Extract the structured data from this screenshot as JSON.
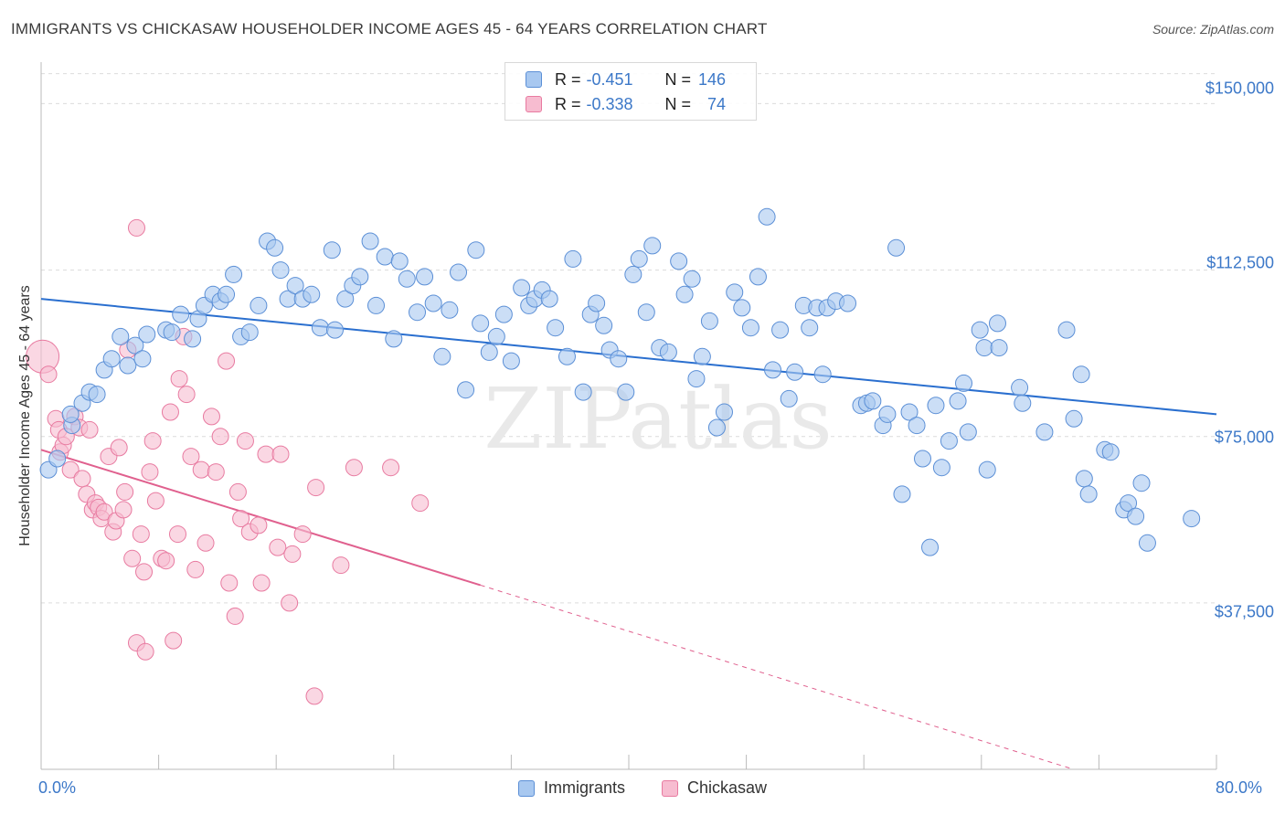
{
  "title": "IMMIGRANTS VS CHICKASAW HOUSEHOLDER INCOME AGES 45 - 64 YEARS CORRELATION CHART",
  "source": "Source: ZipAtlas.com",
  "watermark": "ZIPatlas",
  "colors": {
    "immigrants_fill": "#a8c8f0",
    "immigrants_stroke": "#5b8fd6",
    "immigrants_line": "#2a6fcf",
    "chickasaw_fill": "#f7bcd0",
    "chickasaw_stroke": "#e87aa0",
    "chickasaw_line": "#e0608e",
    "grid": "#dcdcdc",
    "tick_label": "#3c78c8"
  },
  "stats": {
    "immigrants": {
      "r_label": "R =",
      "r": "-0.451",
      "n_label": "N =",
      "n": "146"
    },
    "chickasaw": {
      "r_label": "R =",
      "r": "-0.338",
      "n_label": "N =",
      "n": "74"
    }
  },
  "legend": {
    "immigrants": "Immigrants",
    "chickasaw": "Chickasaw"
  },
  "chart_data": {
    "type": "scatter",
    "title": "IMMIGRANTS VS CHICKASAW HOUSEHOLDER INCOME AGES 45 - 64 YEARS CORRELATION CHART",
    "ylabel": "Householder Income Ages 45 - 64 years",
    "xlabel": "",
    "xlim": [
      0,
      80
    ],
    "ylim": [
      0,
      157500
    ],
    "x_tick_labels": [
      "0.0%",
      "80.0%"
    ],
    "y_ticks": [
      37500,
      75000,
      112500,
      150000
    ],
    "y_tick_labels": [
      "$37,500",
      "$75,000",
      "$112,500",
      "$150,000"
    ],
    "grid": true,
    "legend_position": "bottom-center",
    "series": [
      {
        "name": "Immigrants",
        "trend": {
          "x": [
            0,
            80
          ],
          "y": [
            106000,
            80000
          ]
        },
        "points": [
          [
            0.5,
            67500
          ],
          [
            1.1,
            70000
          ],
          [
            2.1,
            77500
          ],
          [
            2.0,
            80000
          ],
          [
            2.8,
            82500
          ],
          [
            3.3,
            85000
          ],
          [
            3.8,
            84500
          ],
          [
            4.3,
            90000
          ],
          [
            4.8,
            92500
          ],
          [
            5.4,
            97500
          ],
          [
            5.9,
            91000
          ],
          [
            6.4,
            95500
          ],
          [
            6.9,
            92500
          ],
          [
            7.2,
            98000
          ],
          [
            8.5,
            99000
          ],
          [
            8.9,
            98500
          ],
          [
            9.5,
            102500
          ],
          [
            10.3,
            97000
          ],
          [
            10.7,
            101500
          ],
          [
            11.1,
            104500
          ],
          [
            11.7,
            107000
          ],
          [
            12.2,
            105500
          ],
          [
            12.6,
            107000
          ],
          [
            13.1,
            111500
          ],
          [
            13.6,
            97500
          ],
          [
            14.2,
            98500
          ],
          [
            14.8,
            104500
          ],
          [
            15.4,
            119000
          ],
          [
            15.9,
            117500
          ],
          [
            16.3,
            112500
          ],
          [
            16.8,
            106000
          ],
          [
            17.3,
            109000
          ],
          [
            17.8,
            106000
          ],
          [
            18.4,
            107000
          ],
          [
            19.0,
            99500
          ],
          [
            19.8,
            117000
          ],
          [
            20.0,
            99000
          ],
          [
            20.7,
            106000
          ],
          [
            21.2,
            109000
          ],
          [
            21.7,
            111000
          ],
          [
            22.4,
            119000
          ],
          [
            22.8,
            104500
          ],
          [
            23.4,
            115500
          ],
          [
            24.0,
            97000
          ],
          [
            24.4,
            114500
          ],
          [
            24.9,
            110500
          ],
          [
            25.6,
            103000
          ],
          [
            26.1,
            111000
          ],
          [
            26.7,
            105000
          ],
          [
            27.3,
            93000
          ],
          [
            27.8,
            103500
          ],
          [
            28.4,
            112000
          ],
          [
            28.9,
            85500
          ],
          [
            29.6,
            117000
          ],
          [
            29.9,
            100500
          ],
          [
            30.5,
            94000
          ],
          [
            31.0,
            97500
          ],
          [
            31.5,
            102500
          ],
          [
            32.0,
            92000
          ],
          [
            32.7,
            108500
          ],
          [
            33.2,
            104500
          ],
          [
            33.6,
            106000
          ],
          [
            34.1,
            108000
          ],
          [
            34.6,
            106000
          ],
          [
            35.0,
            99500
          ],
          [
            35.8,
            93000
          ],
          [
            36.2,
            115000
          ],
          [
            36.9,
            85000
          ],
          [
            37.4,
            102500
          ],
          [
            37.8,
            105000
          ],
          [
            38.3,
            100000
          ],
          [
            38.7,
            94500
          ],
          [
            39.3,
            92500
          ],
          [
            39.8,
            85000
          ],
          [
            40.3,
            111500
          ],
          [
            40.7,
            115000
          ],
          [
            41.2,
            103000
          ],
          [
            41.6,
            118000
          ],
          [
            42.1,
            95000
          ],
          [
            42.7,
            94000
          ],
          [
            43.4,
            114500
          ],
          [
            43.8,
            107000
          ],
          [
            44.3,
            110500
          ],
          [
            44.6,
            88000
          ],
          [
            45.0,
            93000
          ],
          [
            45.5,
            101000
          ],
          [
            46.0,
            77000
          ],
          [
            46.5,
            80500
          ],
          [
            47.2,
            107500
          ],
          [
            47.7,
            104000
          ],
          [
            48.3,
            99500
          ],
          [
            48.8,
            111000
          ],
          [
            49.4,
            124500
          ],
          [
            49.8,
            90000
          ],
          [
            50.3,
            99000
          ],
          [
            50.9,
            83500
          ],
          [
            51.3,
            89500
          ],
          [
            51.9,
            104500
          ],
          [
            52.3,
            99500
          ],
          [
            52.8,
            104000
          ],
          [
            53.2,
            89000
          ],
          [
            53.5,
            104000
          ],
          [
            54.1,
            105500
          ],
          [
            54.9,
            105000
          ],
          [
            55.8,
            82000
          ],
          [
            56.2,
            82500
          ],
          [
            56.6,
            83000
          ],
          [
            57.3,
            77500
          ],
          [
            57.6,
            80000
          ],
          [
            58.2,
            117500
          ],
          [
            58.6,
            62000
          ],
          [
            59.1,
            80500
          ],
          [
            59.6,
            77500
          ],
          [
            60.0,
            70000
          ],
          [
            60.5,
            50000
          ],
          [
            60.9,
            82000
          ],
          [
            61.3,
            68000
          ],
          [
            61.8,
            74000
          ],
          [
            62.4,
            83000
          ],
          [
            62.8,
            87000
          ],
          [
            63.1,
            76000
          ],
          [
            63.9,
            99000
          ],
          [
            64.2,
            95000
          ],
          [
            64.4,
            67500
          ],
          [
            65.1,
            100500
          ],
          [
            65.2,
            95000
          ],
          [
            66.6,
            86000
          ],
          [
            66.8,
            82500
          ],
          [
            68.3,
            76000
          ],
          [
            69.8,
            99000
          ],
          [
            70.3,
            79000
          ],
          [
            70.8,
            89000
          ],
          [
            71.0,
            65500
          ],
          [
            71.3,
            62000
          ],
          [
            72.4,
            72000
          ],
          [
            72.8,
            71500
          ],
          [
            73.7,
            58500
          ],
          [
            74.0,
            60000
          ],
          [
            74.5,
            57000
          ],
          [
            74.9,
            64500
          ],
          [
            75.3,
            51000
          ],
          [
            78.3,
            56500
          ]
        ]
      },
      {
        "name": "Chickasaw",
        "trend": {
          "x": [
            0,
            29.9
          ],
          "y": [
            72000,
            41500
          ]
        },
        "trend_extension": {
          "x": [
            29.9,
            80
          ],
          "y": [
            41500,
            -10000
          ]
        },
        "points": [
          [
            0.1,
            93000
          ],
          [
            0.5,
            89000
          ],
          [
            1.0,
            79000
          ],
          [
            1.2,
            76500
          ],
          [
            1.3,
            71500
          ],
          [
            1.5,
            73000
          ],
          [
            1.7,
            75000
          ],
          [
            2.0,
            67500
          ],
          [
            2.3,
            79500
          ],
          [
            2.6,
            77000
          ],
          [
            2.8,
            65500
          ],
          [
            3.1,
            62000
          ],
          [
            3.3,
            76500
          ],
          [
            3.5,
            58500
          ],
          [
            3.7,
            60000
          ],
          [
            3.9,
            59000
          ],
          [
            4.1,
            56500
          ],
          [
            4.3,
            58000
          ],
          [
            4.6,
            70500
          ],
          [
            4.9,
            53500
          ],
          [
            5.1,
            56000
          ],
          [
            5.3,
            72500
          ],
          [
            5.6,
            58500
          ],
          [
            5.7,
            62500
          ],
          [
            5.9,
            94500
          ],
          [
            6.5,
            122000
          ],
          [
            6.2,
            47500
          ],
          [
            6.5,
            28500
          ],
          [
            6.8,
            53000
          ],
          [
            7.0,
            44500
          ],
          [
            7.1,
            26500
          ],
          [
            7.4,
            67000
          ],
          [
            7.6,
            74000
          ],
          [
            7.8,
            60500
          ],
          [
            8.2,
            47500
          ],
          [
            8.5,
            47000
          ],
          [
            8.8,
            80500
          ],
          [
            9.0,
            29000
          ],
          [
            9.3,
            53000
          ],
          [
            9.4,
            88000
          ],
          [
            9.7,
            97500
          ],
          [
            9.9,
            84500
          ],
          [
            10.2,
            70500
          ],
          [
            10.5,
            45000
          ],
          [
            10.9,
            67500
          ],
          [
            11.2,
            51000
          ],
          [
            11.6,
            79500
          ],
          [
            11.9,
            67000
          ],
          [
            12.2,
            75000
          ],
          [
            12.6,
            92000
          ],
          [
            12.8,
            42000
          ],
          [
            13.2,
            34500
          ],
          [
            13.4,
            62500
          ],
          [
            13.6,
            56500
          ],
          [
            13.9,
            74000
          ],
          [
            14.2,
            53500
          ],
          [
            14.8,
            55000
          ],
          [
            15.0,
            42000
          ],
          [
            15.3,
            71000
          ],
          [
            16.1,
            50000
          ],
          [
            16.3,
            71000
          ],
          [
            16.9,
            37500
          ],
          [
            17.1,
            48500
          ],
          [
            17.8,
            53000
          ],
          [
            18.6,
            16500
          ],
          [
            18.7,
            63500
          ],
          [
            20.4,
            46000
          ],
          [
            21.3,
            68000
          ],
          [
            23.8,
            68000
          ],
          [
            25.8,
            60000
          ]
        ]
      }
    ]
  }
}
